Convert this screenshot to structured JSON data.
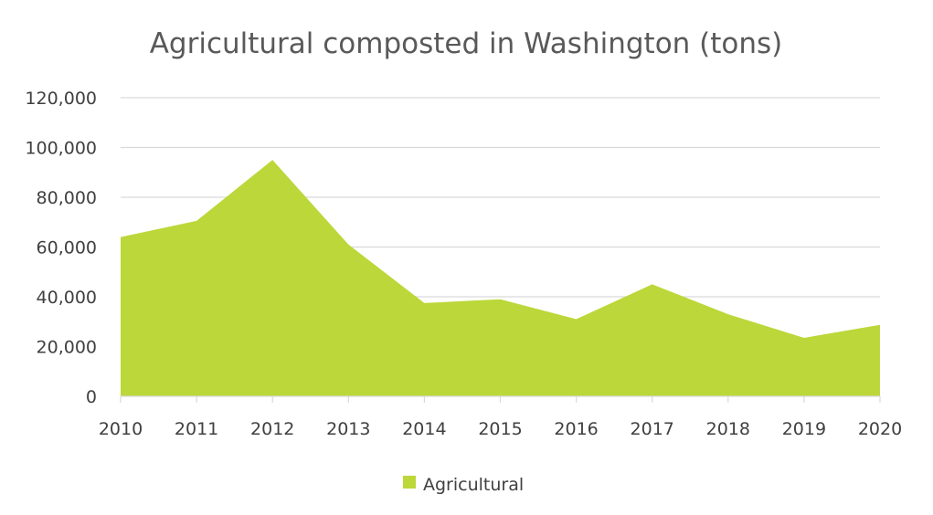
{
  "chart_data": {
    "type": "area",
    "title": "Agricultural composted in Washington (tons)",
    "xlabel": "",
    "ylabel": "",
    "categories": [
      "2010",
      "2011",
      "2012",
      "2013",
      "2014",
      "2015",
      "2016",
      "2017",
      "2018",
      "2019",
      "2020"
    ],
    "series": [
      {
        "name": "Agricultural",
        "color": "#bcd739",
        "values": [
          64000,
          70500,
          95000,
          61000,
          37500,
          39000,
          31000,
          45000,
          33000,
          23500,
          28700
        ]
      }
    ],
    "ylim": [
      0,
      120000
    ],
    "yticks": [
      "0",
      "20,000",
      "40,000",
      "60,000",
      "80,000",
      "100,000",
      "120,000"
    ],
    "grid": true,
    "legend_position": "bottom"
  }
}
